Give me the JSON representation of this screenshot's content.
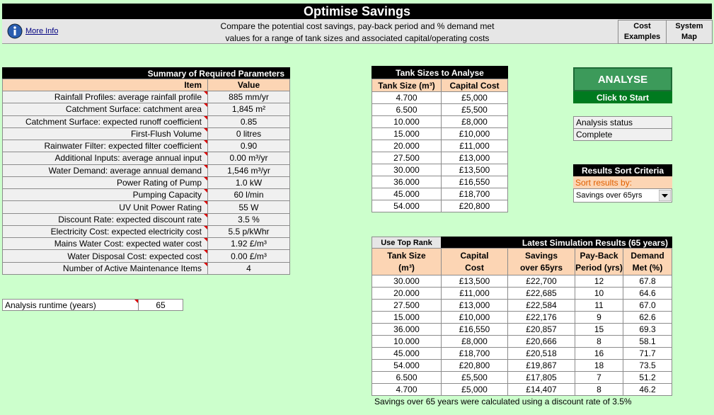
{
  "header": {
    "title": "Optimise Savings",
    "more_info": "More Info",
    "description": [
      "Compare the potential cost savings, pay-back period and % demand met",
      "values for a range of tank sizes and associated capital/operating costs"
    ],
    "buttons": [
      [
        "Cost",
        "Examples"
      ],
      [
        "System",
        "Map"
      ]
    ]
  },
  "parameters": {
    "title": "Summary of Required Parameters",
    "columns": [
      "Item",
      "Value"
    ],
    "rows": [
      [
        "Rainfall Profiles: average rainfall profile",
        "885 mm/yr"
      ],
      [
        "Catchment Surface: catchment area",
        "1,845 m²"
      ],
      [
        "Catchment Surface: expected runoff coefficient",
        "0.85"
      ],
      [
        "First-Flush Volume",
        "0 litres"
      ],
      [
        "Rainwater Filter: expected filter coefficient",
        "0.90"
      ],
      [
        "Additional Inputs: average annual input",
        "0.00 m³/yr"
      ],
      [
        "Water Demand: average annual demand",
        "1,546 m³/yr"
      ],
      [
        "Power Rating of Pump",
        "1.0 kW"
      ],
      [
        "Pumping Capacity",
        "60 l/min"
      ],
      [
        "UV Unit Power Rating",
        "55 W"
      ],
      [
        "Discount Rate: expected discount rate",
        "3.5 %"
      ],
      [
        "Electricity Cost: expected electricity cost",
        "5.5 p/kWhr"
      ],
      [
        "Mains Water Cost: expected water cost",
        "1.92 £/m³"
      ],
      [
        "Water Disposal Cost: expected cost",
        "0.00 £/m³"
      ],
      [
        "Number of Active Maintenance Items",
        "4"
      ]
    ]
  },
  "runtime": {
    "label": "Analysis runtime (years)",
    "value": "65"
  },
  "tank_sizes": {
    "title": "Tank Sizes to Analyse",
    "columns": [
      "Tank Size (m³)",
      "Capital Cost"
    ],
    "rows": [
      [
        "4.700",
        "£5,000"
      ],
      [
        "6.500",
        "£5,500"
      ],
      [
        "10.000",
        "£8,000"
      ],
      [
        "15.000",
        "£10,000"
      ],
      [
        "20.000",
        "£11,000"
      ],
      [
        "27.500",
        "£13,000"
      ],
      [
        "30.000",
        "£13,500"
      ],
      [
        "36.000",
        "£16,550"
      ],
      [
        "45.000",
        "£18,700"
      ],
      [
        "54.000",
        "£20,800"
      ]
    ]
  },
  "analyse": {
    "button": "ANALYSE",
    "hint": "Click to Start"
  },
  "status": {
    "label": "Analysis status",
    "value": "Complete"
  },
  "sort": {
    "title": "Results Sort Criteria",
    "label": "Sort results by:",
    "selected": "Savings over 65yrs"
  },
  "results": {
    "button": "Use Top Rank",
    "title": "Latest Simulation Results (65 years)",
    "columns": [
      [
        "Tank Size",
        "(m³)"
      ],
      [
        "Capital",
        "Cost"
      ],
      [
        "Savings",
        "over 65yrs"
      ],
      [
        "Pay-Back",
        "Period (yrs)"
      ],
      [
        "Demand",
        "Met (%)"
      ]
    ],
    "rows": [
      [
        "30.000",
        "£13,500",
        "£22,700",
        "12",
        "67.8"
      ],
      [
        "20.000",
        "£11,000",
        "£22,685",
        "10",
        "64.6"
      ],
      [
        "27.500",
        "£13,000",
        "£22,584",
        "11",
        "67.0"
      ],
      [
        "15.000",
        "£10,000",
        "£22,176",
        "9",
        "62.6"
      ],
      [
        "36.000",
        "£16,550",
        "£20,857",
        "15",
        "69.3"
      ],
      [
        "10.000",
        "£8,000",
        "£20,666",
        "8",
        "58.1"
      ],
      [
        "45.000",
        "£18,700",
        "£20,518",
        "16",
        "71.7"
      ],
      [
        "54.000",
        "£20,800",
        "£19,867",
        "18",
        "73.5"
      ],
      [
        "6.500",
        "£5,500",
        "£17,805",
        "7",
        "51.2"
      ],
      [
        "4.700",
        "£5,000",
        "£14,407",
        "8",
        "46.2"
      ]
    ],
    "note": "Savings over 65 years were calculated using a discount rate of 3.5%"
  }
}
